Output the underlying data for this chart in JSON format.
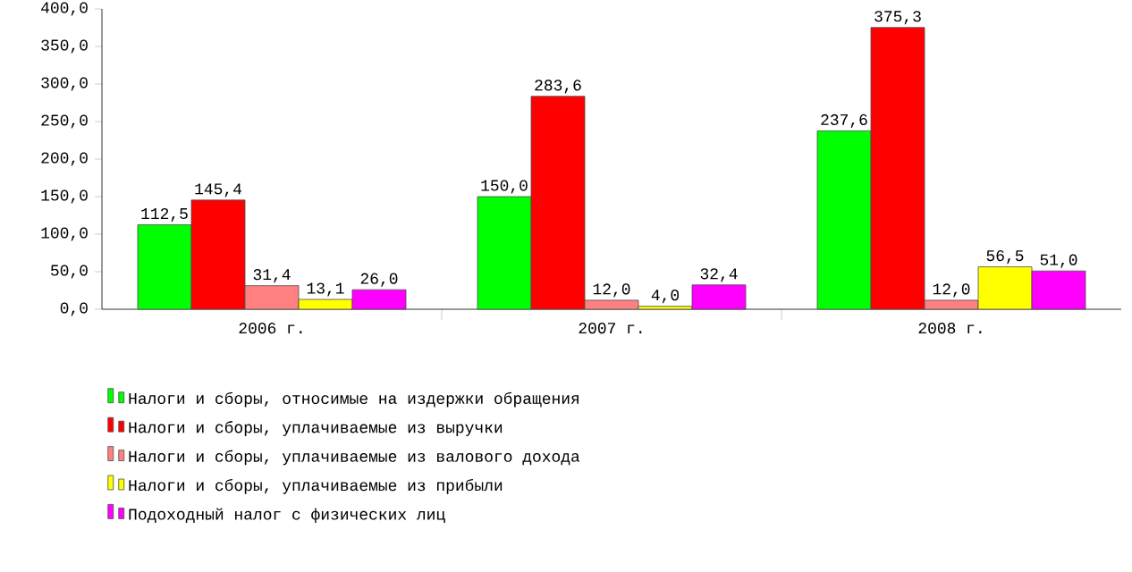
{
  "chart_data": {
    "type": "bar",
    "categories": [
      "2006 г.",
      "2007 г.",
      "2008 г."
    ],
    "series": [
      {
        "name": "Налоги и сборы, относимые на издержки обращения",
        "color": "#00ff00",
        "values": [
          112.5,
          150.0,
          237.6
        ],
        "value_labels": [
          "112,5",
          "150,0",
          "237,6"
        ]
      },
      {
        "name": "Налоги и сборы, уплачиваемые из выручки",
        "color": "#ff0000",
        "values": [
          145.4,
          283.6,
          375.3
        ],
        "value_labels": [
          "145,4",
          "283,6",
          "375,3"
        ]
      },
      {
        "name": "Налоги и сборы, уплачиваемые из валового дохода",
        "color": "#ff8080",
        "values": [
          31.4,
          12.0,
          12.0
        ],
        "value_labels": [
          "31,4",
          "12,0",
          "12,0"
        ]
      },
      {
        "name": "Налоги и сборы, уплачиваемые из прибыли",
        "color": "#ffff00",
        "values": [
          13.1,
          4.0,
          56.5
        ],
        "value_labels": [
          "13,1",
          "4,0",
          "56,5"
        ]
      },
      {
        "name": "Подоходный налог с физических лиц",
        "color": "#ff00ff",
        "values": [
          26.0,
          32.4,
          51.0
        ],
        "value_labels": [
          "26,0",
          "32,4",
          "51,0"
        ]
      }
    ],
    "ylim": [
      0,
      400
    ],
    "yticks": [
      {
        "value": 0,
        "label": "0,0"
      },
      {
        "value": 50,
        "label": "50,0"
      },
      {
        "value": 100,
        "label": "100,0"
      },
      {
        "value": 150,
        "label": "150,0"
      },
      {
        "value": 200,
        "label": "200,0"
      },
      {
        "value": 250,
        "label": "250,0"
      },
      {
        "value": 300,
        "label": "300,0"
      },
      {
        "value": 350,
        "label": "350,0"
      },
      {
        "value": 400,
        "label": "400,0"
      }
    ],
    "legend": "bottom"
  }
}
